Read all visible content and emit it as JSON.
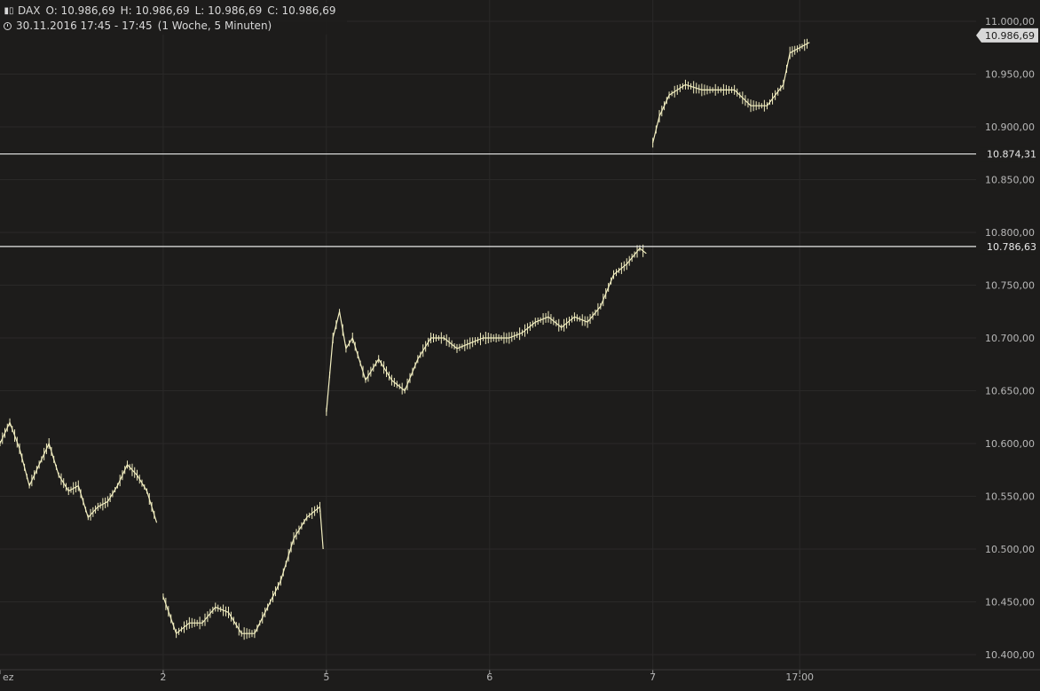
{
  "header": {
    "symbol_icon": "candles-icon",
    "symbol": "DAX",
    "open": "O: 10.986,69",
    "high": "H: 10.986,69",
    "low": "L: 10.986,69",
    "close": "C: 10.986,69",
    "time_icon": "clock-icon",
    "datetime": "30.11.2016 17:45 - 17:45",
    "period": "(1 Woche, 5 Minuten)"
  },
  "colors": {
    "background": "#1d1c1b",
    "candle": "#f2eec0",
    "hline": "#e8e8e8",
    "grid": "#2a2928",
    "last_price_tag": "#d8d8d8"
  },
  "chart_data": {
    "type": "line",
    "instrument": "DAX",
    "ylim": [
      10400,
      11000
    ],
    "yticks": [
      "10.400,00",
      "10.450,00",
      "10.500,00",
      "10.550,00",
      "10.600,00",
      "10.650,00",
      "10.700,00",
      "10.750,00",
      "10.800,00",
      "10.850,00",
      "10.900,00",
      "10.950,00",
      "11.000,00"
    ],
    "ytick_values": [
      10400,
      10450,
      10500,
      10550,
      10600,
      10650,
      10700,
      10750,
      10800,
      10850,
      10900,
      10950,
      11000
    ],
    "xticks": [
      {
        "label": "ez",
        "x": 0
      },
      {
        "label": "2",
        "x": 50
      },
      {
        "label": "5",
        "x": 100
      },
      {
        "label": "6",
        "x": 150
      },
      {
        "label": "7",
        "x": 200
      },
      {
        "label": "17:00",
        "x": 245
      }
    ],
    "grid": true,
    "horizontal_lines": [
      {
        "value": 10874.31,
        "label": "10.874,31"
      },
      {
        "value": 10786.63,
        "label": "10.786,63"
      }
    ],
    "last_price": {
      "value": 10986.69,
      "label": "10.986,69"
    },
    "segments": [
      {
        "x": [
          0,
          3,
          6,
          9,
          12,
          15,
          18,
          21,
          24,
          27,
          30,
          33,
          36,
          39,
          42,
          45,
          48
        ],
        "y": [
          10600,
          10620,
          10595,
          10560,
          10580,
          10600,
          10570,
          10555,
          10560,
          10530,
          10540,
          10545,
          10560,
          10580,
          10570,
          10555,
          10525
        ]
      },
      {
        "x": [
          50,
          54,
          58,
          62,
          66,
          70,
          74,
          78,
          82
        ],
        "y": [
          10455,
          10420,
          10430,
          10430,
          10445,
          10440,
          10420,
          10420,
          10445
        ]
      },
      {
        "x": [
          82,
          86,
          90,
          94,
          98,
          99
        ],
        "y": [
          10445,
          10470,
          10510,
          10530,
          10540,
          10500
        ]
      },
      {
        "x": [
          100,
          102,
          104,
          106,
          108,
          112,
          116,
          120,
          124,
          128,
          132,
          136,
          140
        ],
        "y": [
          10630,
          10700,
          10725,
          10690,
          10700,
          10660,
          10680,
          10660,
          10650,
          10680,
          10700,
          10700,
          10690
        ]
      },
      {
        "x": [
          140,
          144,
          148,
          152,
          156,
          160,
          164,
          168,
          172,
          176,
          180,
          184,
          188,
          192,
          196,
          198
        ],
        "y": [
          10690,
          10695,
          10700,
          10700,
          10700,
          10705,
          10715,
          10720,
          10710,
          10720,
          10715,
          10730,
          10760,
          10770,
          10785,
          10780
        ]
      },
      {
        "x": [
          200,
          202,
          205,
          210,
          215,
          220,
          225,
          230,
          235,
          240,
          242,
          245,
          248
        ],
        "y": [
          10885,
          10910,
          10930,
          10940,
          10935,
          10935,
          10935,
          10920,
          10920,
          10940,
          10970,
          10975,
          10980
        ]
      }
    ]
  }
}
